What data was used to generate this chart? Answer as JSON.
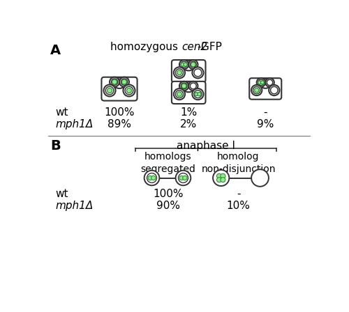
{
  "panel_A_title_normal": "homozygous ",
  "panel_A_title_italic": "cen2",
  "panel_A_title_suffix": "-GFP",
  "panel_B_title": "anaphase I",
  "col1_header": "homologs\nsegregated",
  "col2_header": "homolog\nnon-disjunction",
  "wt_label": "wt",
  "mph1_label": "mph1Δ",
  "A_wt_vals": [
    "100%",
    "1%",
    "-"
  ],
  "A_mph1_vals": [
    "89%",
    "2%",
    "9%"
  ],
  "B_wt_vals": [
    "100%",
    "-"
  ],
  "B_mph1_vals": [
    "90%",
    "10%"
  ],
  "green_fill": "#90ee90",
  "green_edge": "#3a8a3a",
  "cell_edge": "#333333",
  "bg_color": "#ffffff",
  "text_color": "#000000",
  "figsize": [
    5.0,
    4.48
  ],
  "dpi": 100
}
